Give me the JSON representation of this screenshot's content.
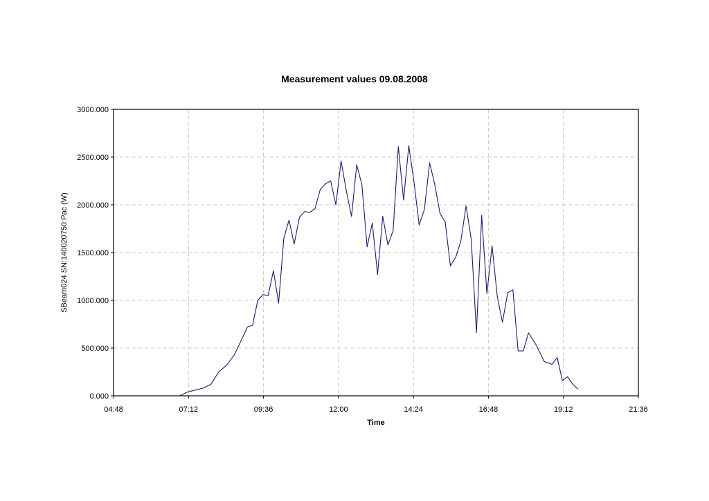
{
  "chart_data": {
    "type": "line",
    "title": "Measurement values 09.08.2008",
    "xlabel": "Time",
    "ylabel": "SBeam024 SN:140020750:Pac (W)",
    "x_ticks": [
      "04:48",
      "07:12",
      "09:36",
      "12:00",
      "14:24",
      "16:48",
      "19:12",
      "21:36"
    ],
    "y_ticks": [
      "0.000",
      "500.000",
      "1000.000",
      "1500.000",
      "2000.000",
      "2500.000",
      "3000.000"
    ],
    "xlim": [
      "04:48",
      "21:36"
    ],
    "ylim": [
      0,
      3000
    ],
    "grid": true,
    "colors": {
      "line": "#1a1a6e",
      "grid": "#c8c8c8",
      "axis": "#000000"
    },
    "series": [
      {
        "x": [
          "06:55",
          "07:10",
          "07:25",
          "07:40",
          "07:55",
          "08:10",
          "08:25",
          "08:40",
          "08:55",
          "09:05",
          "09:15",
          "09:25",
          "09:35",
          "09:45",
          "09:55",
          "10:05",
          "10:15",
          "10:25",
          "10:35",
          "10:45",
          "10:55",
          "11:05",
          "11:15",
          "11:25",
          "11:35",
          "11:45",
          "11:55",
          "12:05",
          "12:15",
          "12:25",
          "12:35",
          "12:45",
          "12:55",
          "13:05",
          "13:15",
          "13:25",
          "13:35",
          "13:45",
          "13:55",
          "14:05",
          "14:15",
          "14:25",
          "14:35",
          "14:45",
          "14:55",
          "15:05",
          "15:15",
          "15:25",
          "15:35",
          "15:45",
          "15:55",
          "16:05",
          "16:15",
          "16:25",
          "16:35",
          "16:45",
          "16:55",
          "17:05",
          "17:15",
          "17:25",
          "17:35",
          "17:45",
          "17:55",
          "18:05",
          "18:20",
          "18:35",
          "18:50",
          "19:00",
          "19:10",
          "19:20",
          "19:30",
          "19:40"
        ],
        "y": [
          0,
          40,
          60,
          80,
          120,
          250,
          320,
          430,
          600,
          720,
          740,
          1000,
          1060,
          1050,
          1310,
          970,
          1650,
          1840,
          1590,
          1870,
          1930,
          1920,
          1960,
          2160,
          2220,
          2250,
          2000,
          2460,
          2150,
          1880,
          2420,
          2210,
          1560,
          1810,
          1270,
          1880,
          1580,
          1730,
          2610,
          2050,
          2620,
          2240,
          1790,
          1950,
          2440,
          2210,
          1910,
          1820,
          1360,
          1450,
          1620,
          1990,
          1640,
          660,
          1890,
          1070,
          1570,
          1040,
          770,
          1080,
          1110,
          470,
          470,
          660,
          530,
          360,
          330,
          400,
          160,
          200,
          120,
          70
        ]
      }
    ]
  }
}
